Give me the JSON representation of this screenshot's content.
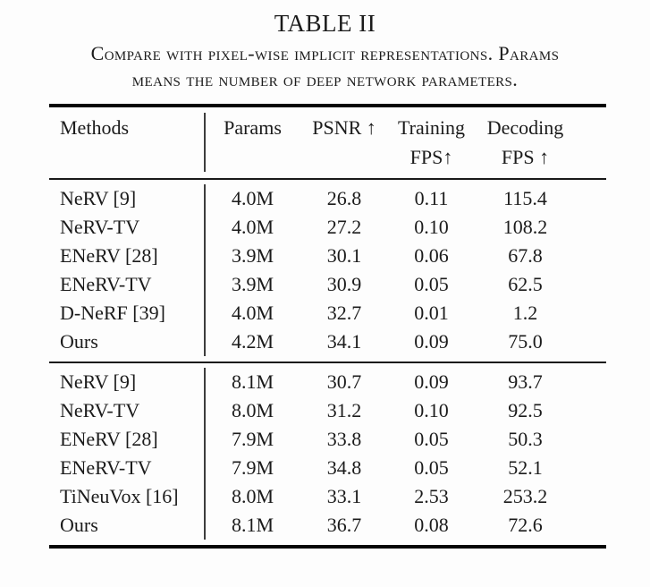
{
  "title": "TABLE II",
  "caption": {
    "line1": "Compare with pixel-wise implicit representations. Params",
    "line2": "means the number of deep network parameters."
  },
  "colors": {
    "background": "#fdfdfd",
    "text": "#1b1b1b",
    "rule_thick": "#050505",
    "rule_thin": "#191919",
    "column_divider": "#3d3d3d"
  },
  "table": {
    "columns": [
      {
        "label": "Methods",
        "sub": ""
      },
      {
        "label": "Params",
        "sub": ""
      },
      {
        "label": "PSNR ↑",
        "sub": ""
      },
      {
        "label": "Training",
        "sub": "FPS↑"
      },
      {
        "label": "Decoding",
        "sub": "FPS ↑"
      }
    ],
    "groups": [
      {
        "rows": [
          {
            "method": "NeRV [9]",
            "params": "4.0M",
            "psnr": "26.8",
            "training_fps": "0.11",
            "decoding_fps": "115.4"
          },
          {
            "method": "NeRV-TV",
            "params": "4.0M",
            "psnr": "27.2",
            "training_fps": "0.10",
            "decoding_fps": "108.2"
          },
          {
            "method": "ENeRV [28]",
            "params": "3.9M",
            "psnr": "30.1",
            "training_fps": "0.06",
            "decoding_fps": "67.8"
          },
          {
            "method": "ENeRV-TV",
            "params": "3.9M",
            "psnr": "30.9",
            "training_fps": "0.05",
            "decoding_fps": "62.5"
          },
          {
            "method": "D-NeRF [39]",
            "params": "4.0M",
            "psnr": "32.7",
            "training_fps": "0.01",
            "decoding_fps": "1.2"
          },
          {
            "method": "Ours",
            "params": "4.2M",
            "psnr": "34.1",
            "training_fps": "0.09",
            "decoding_fps": "75.0"
          }
        ]
      },
      {
        "rows": [
          {
            "method": "NeRV [9]",
            "params": "8.1M",
            "psnr": "30.7",
            "training_fps": "0.09",
            "decoding_fps": "93.7"
          },
          {
            "method": "NeRV-TV",
            "params": "8.0M",
            "psnr": "31.2",
            "training_fps": "0.10",
            "decoding_fps": "92.5"
          },
          {
            "method": "ENeRV [28]",
            "params": "7.9M",
            "psnr": "33.8",
            "training_fps": "0.05",
            "decoding_fps": "50.3"
          },
          {
            "method": "ENeRV-TV",
            "params": "7.9M",
            "psnr": "34.8",
            "training_fps": "0.05",
            "decoding_fps": "52.1"
          },
          {
            "method": "TiNeuVox [16]",
            "params": "8.0M",
            "psnr": "33.1",
            "training_fps": "2.53",
            "decoding_fps": "253.2"
          },
          {
            "method": "Ours",
            "params": "8.1M",
            "psnr": "36.7",
            "training_fps": "0.08",
            "decoding_fps": "72.6"
          }
        ]
      }
    ]
  }
}
